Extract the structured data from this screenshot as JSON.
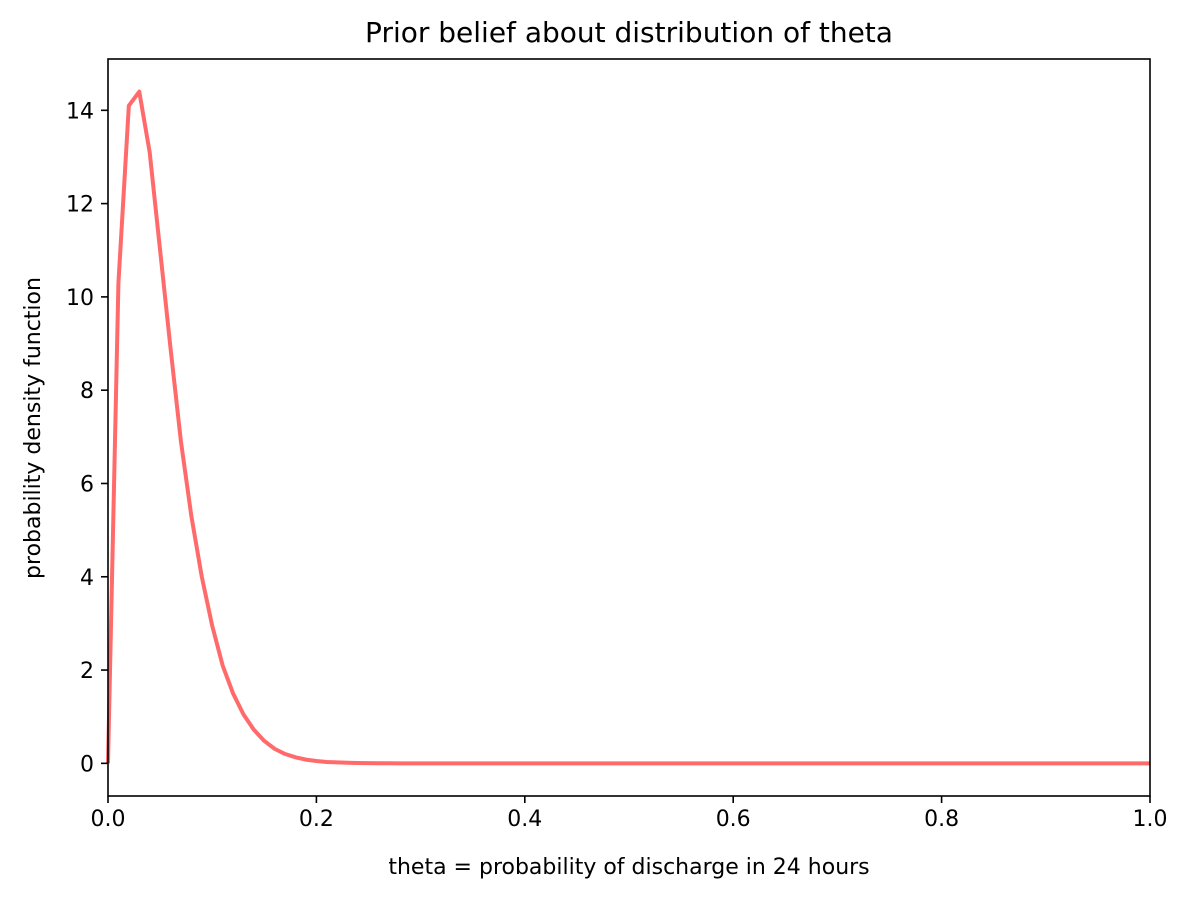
{
  "chart_data": {
    "type": "line",
    "title": "Prior belief about distribution of theta",
    "xlabel": "theta = probability of discharge in 24 hours",
    "ylabel": "probability density function",
    "xlim": [
      0.0,
      1.0
    ],
    "ylim": [
      -0.7,
      15.1
    ],
    "xticks": [
      0.0,
      0.2,
      0.4,
      0.6,
      0.8,
      1.0
    ],
    "xtick_labels": [
      "0.0",
      "0.2",
      "0.4",
      "0.6",
      "0.8",
      "1.0"
    ],
    "yticks": [
      0,
      2,
      4,
      6,
      8,
      10,
      12,
      14
    ],
    "ytick_labels": [
      "0",
      "2",
      "4",
      "6",
      "8",
      "10",
      "12",
      "14"
    ],
    "grid": false,
    "legend": false,
    "series": [
      {
        "color": "#ff6b6b",
        "x": [
          0.0,
          0.01,
          0.02,
          0.03,
          0.04,
          0.05,
          0.06,
          0.07,
          0.08,
          0.09,
          0.1,
          0.11,
          0.12,
          0.13,
          0.14,
          0.15,
          0.16,
          0.17,
          0.18,
          0.19,
          0.2,
          0.21,
          0.22,
          0.23,
          0.24,
          0.25,
          0.26,
          0.27,
          0.28,
          0.3,
          0.35,
          0.4,
          0.5,
          0.6,
          0.7,
          0.8,
          0.9,
          1.0
        ],
        "y": [
          0.0,
          10.3,
          14.1,
          14.4,
          13.1,
          11.0,
          8.9,
          6.9,
          5.3,
          4.0,
          2.95,
          2.1,
          1.5,
          1.05,
          0.72,
          0.48,
          0.31,
          0.2,
          0.13,
          0.08,
          0.05,
          0.03,
          0.02,
          0.012,
          0.007,
          0.004,
          0.002,
          0.001,
          0.0,
          0.0,
          0.0,
          0.0,
          0.0,
          0.0,
          0.0,
          0.0,
          0.0,
          0.0
        ]
      }
    ]
  }
}
